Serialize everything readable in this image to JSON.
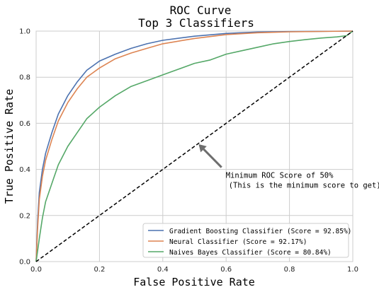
{
  "chart_data": {
    "type": "line",
    "title_line1": "ROC Curve",
    "title_line2": "Top 3 Classifiers",
    "xlabel": "False Positive Rate",
    "ylabel": "True Positive Rate",
    "xlim": [
      0,
      1
    ],
    "ylim": [
      0,
      1
    ],
    "xticks": [
      "0.0",
      "0.2",
      "0.4",
      "0.6",
      "0.8",
      "1.0"
    ],
    "yticks": [
      "0.0",
      "0.2",
      "0.4",
      "0.6",
      "0.8",
      "1.0"
    ],
    "grid": true,
    "legend_position": "lower-right",
    "series": [
      {
        "name": "Gradient Boosting Classifier (Score = 92.85%)",
        "color": "#4c72b0",
        "points": [
          [
            0,
            0
          ],
          [
            0.005,
            0.18
          ],
          [
            0.01,
            0.3
          ],
          [
            0.02,
            0.4
          ],
          [
            0.03,
            0.47
          ],
          [
            0.05,
            0.56
          ],
          [
            0.07,
            0.64
          ],
          [
            0.1,
            0.72
          ],
          [
            0.13,
            0.78
          ],
          [
            0.16,
            0.83
          ],
          [
            0.2,
            0.87
          ],
          [
            0.25,
            0.9
          ],
          [
            0.3,
            0.925
          ],
          [
            0.35,
            0.945
          ],
          [
            0.4,
            0.96
          ],
          [
            0.5,
            0.978
          ],
          [
            0.6,
            0.99
          ],
          [
            0.7,
            0.996
          ],
          [
            0.8,
            0.998
          ],
          [
            1,
            1
          ]
        ]
      },
      {
        "name": "Neural Classifier (Score = 92.17%)",
        "color": "#dd8452",
        "points": [
          [
            0,
            0
          ],
          [
            0.005,
            0.15
          ],
          [
            0.01,
            0.27
          ],
          [
            0.02,
            0.37
          ],
          [
            0.03,
            0.44
          ],
          [
            0.05,
            0.53
          ],
          [
            0.07,
            0.61
          ],
          [
            0.1,
            0.69
          ],
          [
            0.13,
            0.75
          ],
          [
            0.16,
            0.8
          ],
          [
            0.2,
            0.84
          ],
          [
            0.25,
            0.88
          ],
          [
            0.3,
            0.905
          ],
          [
            0.35,
            0.925
          ],
          [
            0.4,
            0.945
          ],
          [
            0.5,
            0.968
          ],
          [
            0.6,
            0.985
          ],
          [
            0.7,
            0.993
          ],
          [
            0.8,
            0.997
          ],
          [
            1,
            1
          ]
        ]
      },
      {
        "name": "Naives Bayes Classifier (Score = 80.84%)",
        "color": "#55a868",
        "points": [
          [
            0,
            0
          ],
          [
            0.01,
            0.1
          ],
          [
            0.02,
            0.19
          ],
          [
            0.03,
            0.26
          ],
          [
            0.05,
            0.34
          ],
          [
            0.07,
            0.42
          ],
          [
            0.1,
            0.5
          ],
          [
            0.13,
            0.56
          ],
          [
            0.16,
            0.62
          ],
          [
            0.2,
            0.67
          ],
          [
            0.25,
            0.72
          ],
          [
            0.3,
            0.76
          ],
          [
            0.35,
            0.785
          ],
          [
            0.4,
            0.81
          ],
          [
            0.45,
            0.835
          ],
          [
            0.5,
            0.86
          ],
          [
            0.55,
            0.875
          ],
          [
            0.6,
            0.9
          ],
          [
            0.65,
            0.915
          ],
          [
            0.7,
            0.93
          ],
          [
            0.75,
            0.945
          ],
          [
            0.8,
            0.955
          ],
          [
            0.85,
            0.963
          ],
          [
            0.9,
            0.97
          ],
          [
            0.95,
            0.975
          ],
          [
            0.98,
            0.98
          ],
          [
            1,
            1
          ]
        ]
      }
    ],
    "baseline_color": "#000000",
    "annotation": {
      "line1": "Minimum ROC Score of 50%",
      "line2": "(This is the minimum score to get)",
      "arrow_target": [
        0.5,
        0.5
      ],
      "text_anchor": [
        0.59,
        0.36
      ],
      "arrow_color": "#6e6e6e"
    }
  }
}
